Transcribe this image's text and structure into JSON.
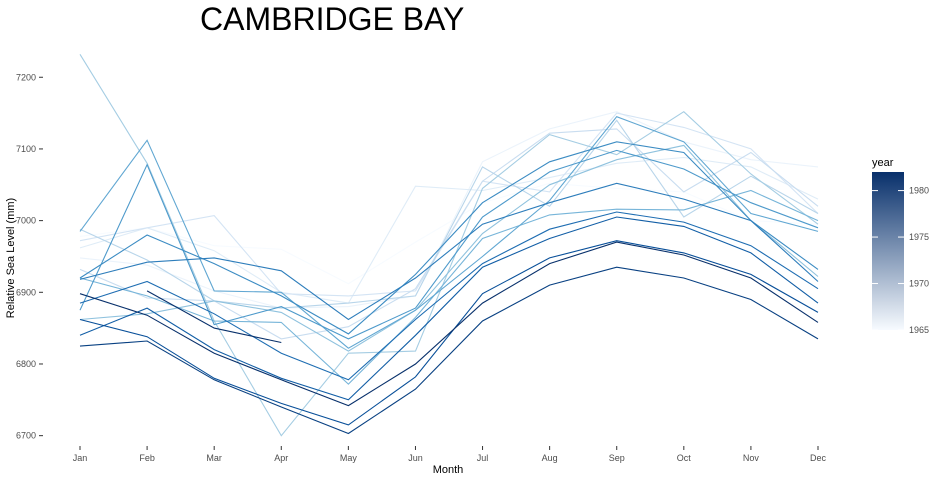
{
  "chart_data": {
    "type": "line",
    "title": "CAMBRIDGE BAY",
    "xlabel": "Month",
    "ylabel": "Relative Sea Level (mm)",
    "categories": [
      "Jan",
      "Feb",
      "Mar",
      "Apr",
      "May",
      "Jun",
      "Jul",
      "Aug",
      "Sep",
      "Oct",
      "Nov",
      "Dec"
    ],
    "y_ticks": [
      6700,
      6800,
      6900,
      7000,
      7100,
      7200
    ],
    "ylim": [
      6680,
      7245
    ],
    "grid": false,
    "legend": {
      "title": "year",
      "position": "right",
      "type": "continuous",
      "range": [
        1965,
        1982
      ],
      "ticks": [
        1965,
        1970,
        1975,
        1980
      ],
      "color_low": "#f7fbff",
      "color_high": "#08306b"
    },
    "series": [
      {
        "year": 1965,
        "values": [
          6978,
          6990,
          6965,
          6960,
          6912,
          6970,
          7025,
          7052,
          7045,
          7040,
          7000,
          6995
        ]
      },
      {
        "year": 1966,
        "values": [
          6948,
          6938,
          6902,
          6878,
          6880,
          6895,
          7082,
          7128,
          7152,
          7110,
          7085,
          7075
        ]
      },
      {
        "year": 1967,
        "values": [
          6962,
          6990,
          6958,
          6900,
          6885,
          7048,
          7042,
          7060,
          7080,
          7088,
          7075,
          7030
        ]
      },
      {
        "year": 1968,
        "values": [
          6972,
          6990,
          7007,
          6898,
          6895,
          6902,
          7055,
          7040,
          7150,
          7130,
          7100,
          7010
        ]
      },
      {
        "year": 1969,
        "values": [
          6932,
          6892,
          6888,
          6835,
          6852,
          6905,
          7055,
          7122,
          7128,
          7040,
          7095,
          7020
        ]
      },
      {
        "year": 1970,
        "values": [
          6988,
          6945,
          6888,
          6878,
          6885,
          6895,
          7075,
          7020,
          7140,
          7005,
          7062,
          7010
        ]
      },
      {
        "year": 1971,
        "values": [
          7232,
          7080,
          6860,
          6700,
          6815,
          6818,
          7045,
          7120,
          7092,
          7152,
          7065,
          6995
        ]
      },
      {
        "year": 1972,
        "values": [
          6862,
          6870,
          6888,
          6872,
          6818,
          6875,
          6982,
          7050,
          7085,
          7105,
          7000,
          6922
        ]
      },
      {
        "year": 1973,
        "values": [
          6920,
          6895,
          6860,
          6858,
          6772,
          6865,
          6975,
          7008,
          7016,
          7015,
          7042,
          7000
        ]
      },
      {
        "year": 1974,
        "values": [
          6985,
          7112,
          6902,
          6900,
          6822,
          6875,
          6950,
          7028,
          7145,
          7110,
          7010,
          6985
        ]
      },
      {
        "year": 1975,
        "values": [
          6875,
          7078,
          6855,
          6880,
          6835,
          6878,
          7005,
          7068,
          7098,
          7072,
          7025,
          6990
        ]
      },
      {
        "year": 1976,
        "values": [
          6920,
          6980,
          6940,
          6895,
          6842,
          6925,
          7025,
          7082,
          7110,
          7095,
          7000,
          6932
        ]
      },
      {
        "year": 1977,
        "values": [
          6918,
          6942,
          6948,
          6930,
          6862,
          6920,
          6995,
          7025,
          7052,
          7030,
          7000,
          6915
        ]
      },
      {
        "year": 1978,
        "values": [
          6885,
          6915,
          6870,
          6815,
          6778,
          6862,
          6940,
          6988,
          7012,
          6998,
          6965,
          6905
        ]
      },
      {
        "year": 1979,
        "values": [
          6840,
          6878,
          6820,
          6780,
          6750,
          6840,
          6935,
          6975,
          7005,
          6992,
          6955,
          6885
        ]
      },
      {
        "year": 1980,
        "values": [
          6862,
          6838,
          6780,
          6745,
          6715,
          6782,
          6898,
          6948,
          6972,
          6955,
          6925,
          6872
        ]
      },
      {
        "year": 1981,
        "values": [
          6825,
          6832,
          6778,
          6740,
          6703,
          6765,
          6860,
          6910,
          6935,
          6920,
          6890,
          6835
        ]
      },
      {
        "year": 1982,
        "values": [
          6898,
          6868,
          6815,
          6778,
          6742,
          6800,
          6885,
          6940,
          6970,
          6952,
          6920,
          6858
        ]
      },
      {
        "year": 1983,
        "values": [
          null,
          6902,
          6850,
          6830,
          null,
          null,
          null,
          null,
          null,
          null,
          null,
          null
        ]
      }
    ]
  }
}
